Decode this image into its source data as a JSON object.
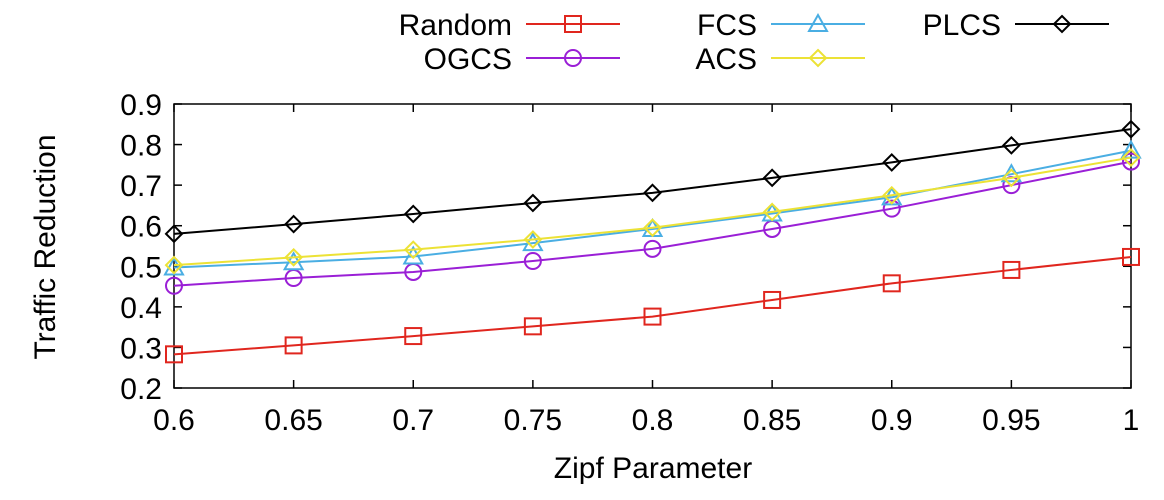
{
  "chart_data": {
    "type": "line",
    "title": "",
    "xlabel": "Zipf Parameter",
    "ylabel": "Traffic Reduction",
    "x": [
      0.6,
      0.65,
      0.7,
      0.75,
      0.8,
      0.85,
      0.9,
      0.95,
      1
    ],
    "x_tick_labels": [
      "0.6",
      "0.65",
      "0.7",
      "0.75",
      "0.8",
      "0.85",
      "0.9",
      "0.95",
      "1"
    ],
    "y_tick_labels": [
      "0.2",
      "0.3",
      "0.4",
      "0.5",
      "0.6",
      "0.7",
      "0.8",
      "0.9"
    ],
    "xlim": [
      0.6,
      1
    ],
    "ylim": [
      0.2,
      0.9
    ],
    "grid": false,
    "legend_position": "top",
    "series": [
      {
        "name": "Random",
        "color": "#e0261e",
        "marker": "square",
        "values": [
          0.283,
          0.305,
          0.328,
          0.352,
          0.376,
          0.417,
          0.458,
          0.491,
          0.523
        ]
      },
      {
        "name": "OGCS",
        "color": "#9a1fd6",
        "marker": "circle",
        "values": [
          0.452,
          0.471,
          0.486,
          0.513,
          0.543,
          0.592,
          0.642,
          0.7,
          0.758
        ]
      },
      {
        "name": "FCS",
        "color": "#4aaee3",
        "marker": "triangle",
        "values": [
          0.497,
          0.51,
          0.524,
          0.557,
          0.592,
          0.63,
          0.67,
          0.727,
          0.785
        ]
      },
      {
        "name": "ACS",
        "color": "#ece236",
        "marker": "diamond",
        "values": [
          0.503,
          0.522,
          0.541,
          0.566,
          0.595,
          0.634,
          0.675,
          0.718,
          0.768
        ]
      },
      {
        "name": "PLCS",
        "color": "#000000",
        "marker": "diamond",
        "values": [
          0.58,
          0.604,
          0.629,
          0.656,
          0.681,
          0.718,
          0.756,
          0.798,
          0.838
        ]
      }
    ]
  }
}
